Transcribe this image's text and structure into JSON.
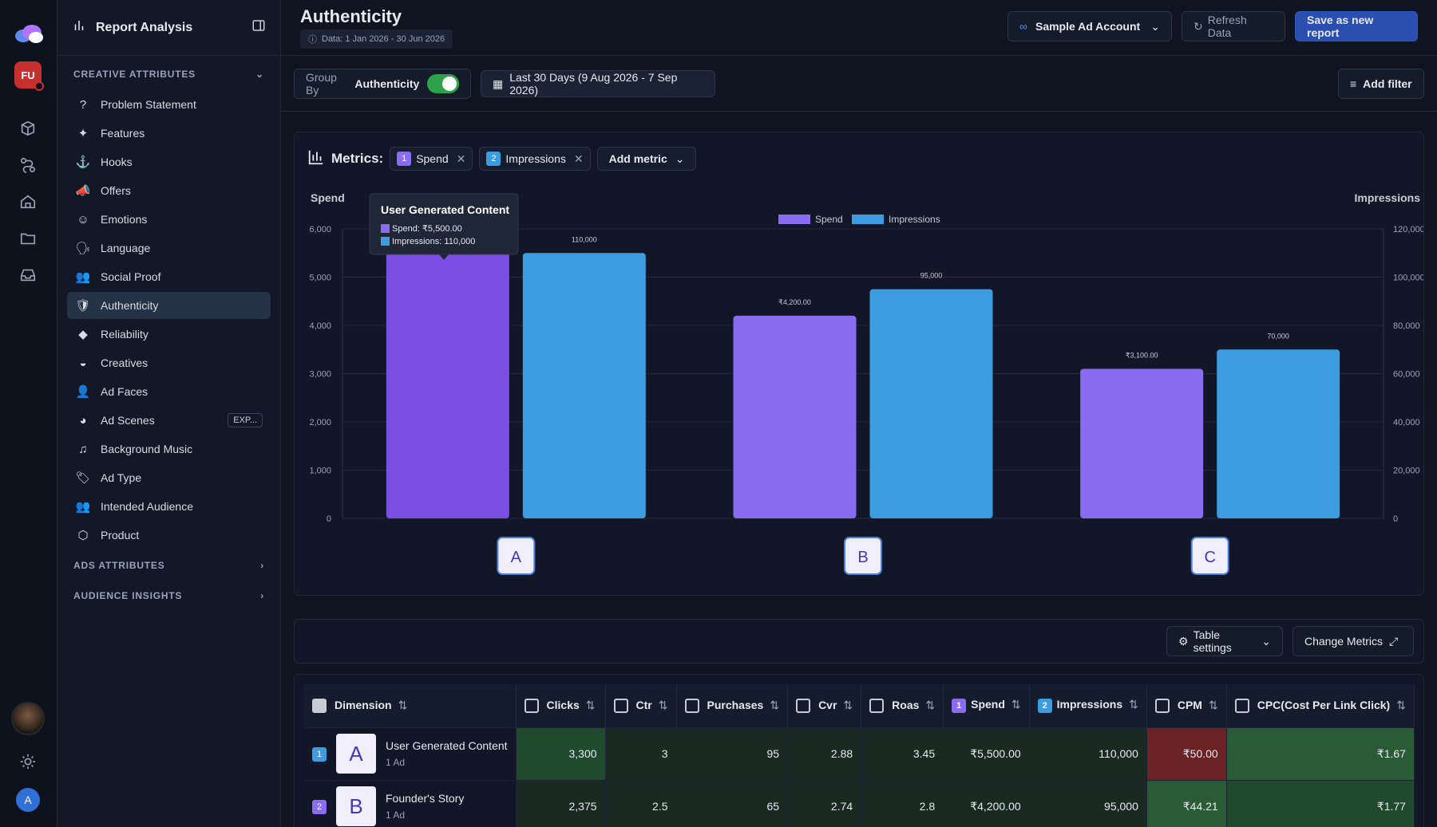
{
  "rail": {
    "user_initials": "FU",
    "account_initial": "A"
  },
  "sidebar": {
    "title": "Report Analysis",
    "section_creative": "CREATIVE ATTRIBUTES",
    "items": [
      {
        "label": "Problem Statement",
        "icon": "?"
      },
      {
        "label": "Features",
        "icon": "✦"
      },
      {
        "label": "Hooks",
        "icon": "⚓"
      },
      {
        "label": "Offers",
        "icon": "📣"
      },
      {
        "label": "Emotions",
        "icon": "☺"
      },
      {
        "label": "Language",
        "icon": "🗣"
      },
      {
        "label": "Social Proof",
        "icon": "👥"
      },
      {
        "label": "Authenticity",
        "icon": "🛡"
      },
      {
        "label": "Reliability",
        "icon": "◆"
      },
      {
        "label": "Creatives",
        "icon": "◒"
      },
      {
        "label": "Ad Faces",
        "icon": "👤"
      },
      {
        "label": "Ad Scenes",
        "icon": "◕",
        "badge": "EXP..."
      },
      {
        "label": "Background Music",
        "icon": "♫"
      },
      {
        "label": "Ad Type",
        "icon": "🏷"
      },
      {
        "label": "Intended Audience",
        "icon": "👥"
      },
      {
        "label": "Product",
        "icon": "⬡"
      }
    ],
    "section_ads": "ADS ATTRIBUTES",
    "section_audience": "AUDIENCE INSIGHTS"
  },
  "header": {
    "title": "Authenticity",
    "data_range": "Data: 1 Jan 2026 - 30 Jun 2026",
    "account": "Sample Ad Account",
    "refresh": "Refresh Data",
    "save": "Save as new report"
  },
  "toolbar": {
    "group_by_label": "Group By",
    "group_by_value": "Authenticity",
    "date_range": "Last 30 Days (9 Aug 2026 - 7 Sep 2026)",
    "add_filter": "Add filter"
  },
  "metrics": {
    "label": "Metrics:",
    "chips": [
      {
        "num": "1",
        "label": "Spend"
      },
      {
        "num": "2",
        "label": "Impressions"
      }
    ],
    "add_metric": "Add metric"
  },
  "chart_data": {
    "type": "bar",
    "categories": [
      "A",
      "B",
      "C"
    ],
    "series": [
      {
        "name": "Spend",
        "axis": "left",
        "values": [
          5500,
          4200,
          3100
        ],
        "labels": [
          "",
          "₹4,200.00",
          "₹3,100.00"
        ],
        "color": "#8a6cf0"
      },
      {
        "name": "Impressions",
        "axis": "right",
        "values": [
          110000,
          95000,
          70000
        ],
        "labels": [
          "110,000",
          "95,000",
          "70,000"
        ],
        "color": "#3d9be0"
      }
    ],
    "ylabel_left": "Spend",
    "ylabel_right": "Impressions",
    "ylim_left": [
      0,
      6000
    ],
    "ylim_right": [
      0,
      120000
    ],
    "yticks_left": [
      "0",
      "1,000",
      "2,000",
      "3,000",
      "4,000",
      "5,000",
      "6,000"
    ],
    "yticks_right": [
      "0",
      "20,000",
      "40,000",
      "60,000",
      "80,000",
      "100,000",
      "120,000"
    ],
    "legend": "top-center",
    "tooltip": {
      "title": "User Generated Content",
      "spend": "Spend: ₹5,500.00",
      "impressions": "Impressions: 110,000"
    }
  },
  "table_toolbar": {
    "settings": "Table settings",
    "change_metrics": "Change Metrics"
  },
  "table": {
    "columns": [
      "Dimension",
      "Clicks",
      "Ctr",
      "Purchases",
      "Cvr",
      "Roas",
      "Spend",
      "Impressions",
      "CPM",
      "CPC(Cost Per Link Click)"
    ],
    "rows": [
      {
        "idx": "1",
        "letter": "A",
        "name": "User Generated Content",
        "sub": "1 Ad",
        "values": [
          "3,300",
          "3",
          "95",
          "2.88",
          "3.45",
          "₹5,500.00",
          "110,000",
          "₹50.00",
          "₹1.67"
        ]
      },
      {
        "idx": "2",
        "letter": "B",
        "name": "Founder's Story",
        "sub": "1 Ad",
        "values": [
          "2,375",
          "2.5",
          "65",
          "2.74",
          "2.8",
          "₹4,200.00",
          "95,000",
          "₹44.21",
          "₹1.77"
        ]
      }
    ]
  }
}
